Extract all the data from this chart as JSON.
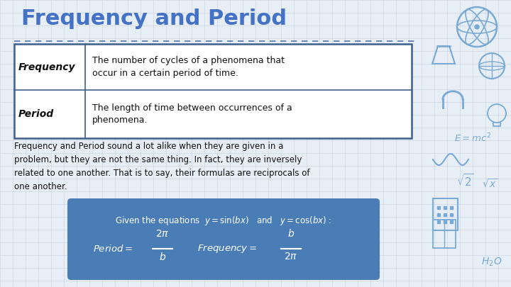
{
  "title": "Frequency and Period",
  "title_color": "#4472c4",
  "title_fontsize": 22,
  "bg_color": "#e8eef6",
  "grid_color": "#c5d0e0",
  "table_row1_label": "Frequency",
  "table_row1_text": "The number of cycles of a phenomena that\noccur in a certain period of time.",
  "table_row2_label": "Period",
  "table_row2_text": "The length of time between occurrences of a\nphenomena.",
  "table_border_color": "#3d5f8a",
  "table_label_color": "#111111",
  "body_text": "Frequency and Period sound a lot alike when they are given in a\nproblem, but they are not the same thing. In fact, they are inversely\nrelated to one another. That is to say, their formulas are reciprocals of\none another.",
  "body_text_color": "#111111",
  "box_bg_color": "#4a7db5",
  "box_text_color": "#ffffff",
  "deco_color": "#7aaad4",
  "separator_color": "#5578aa"
}
